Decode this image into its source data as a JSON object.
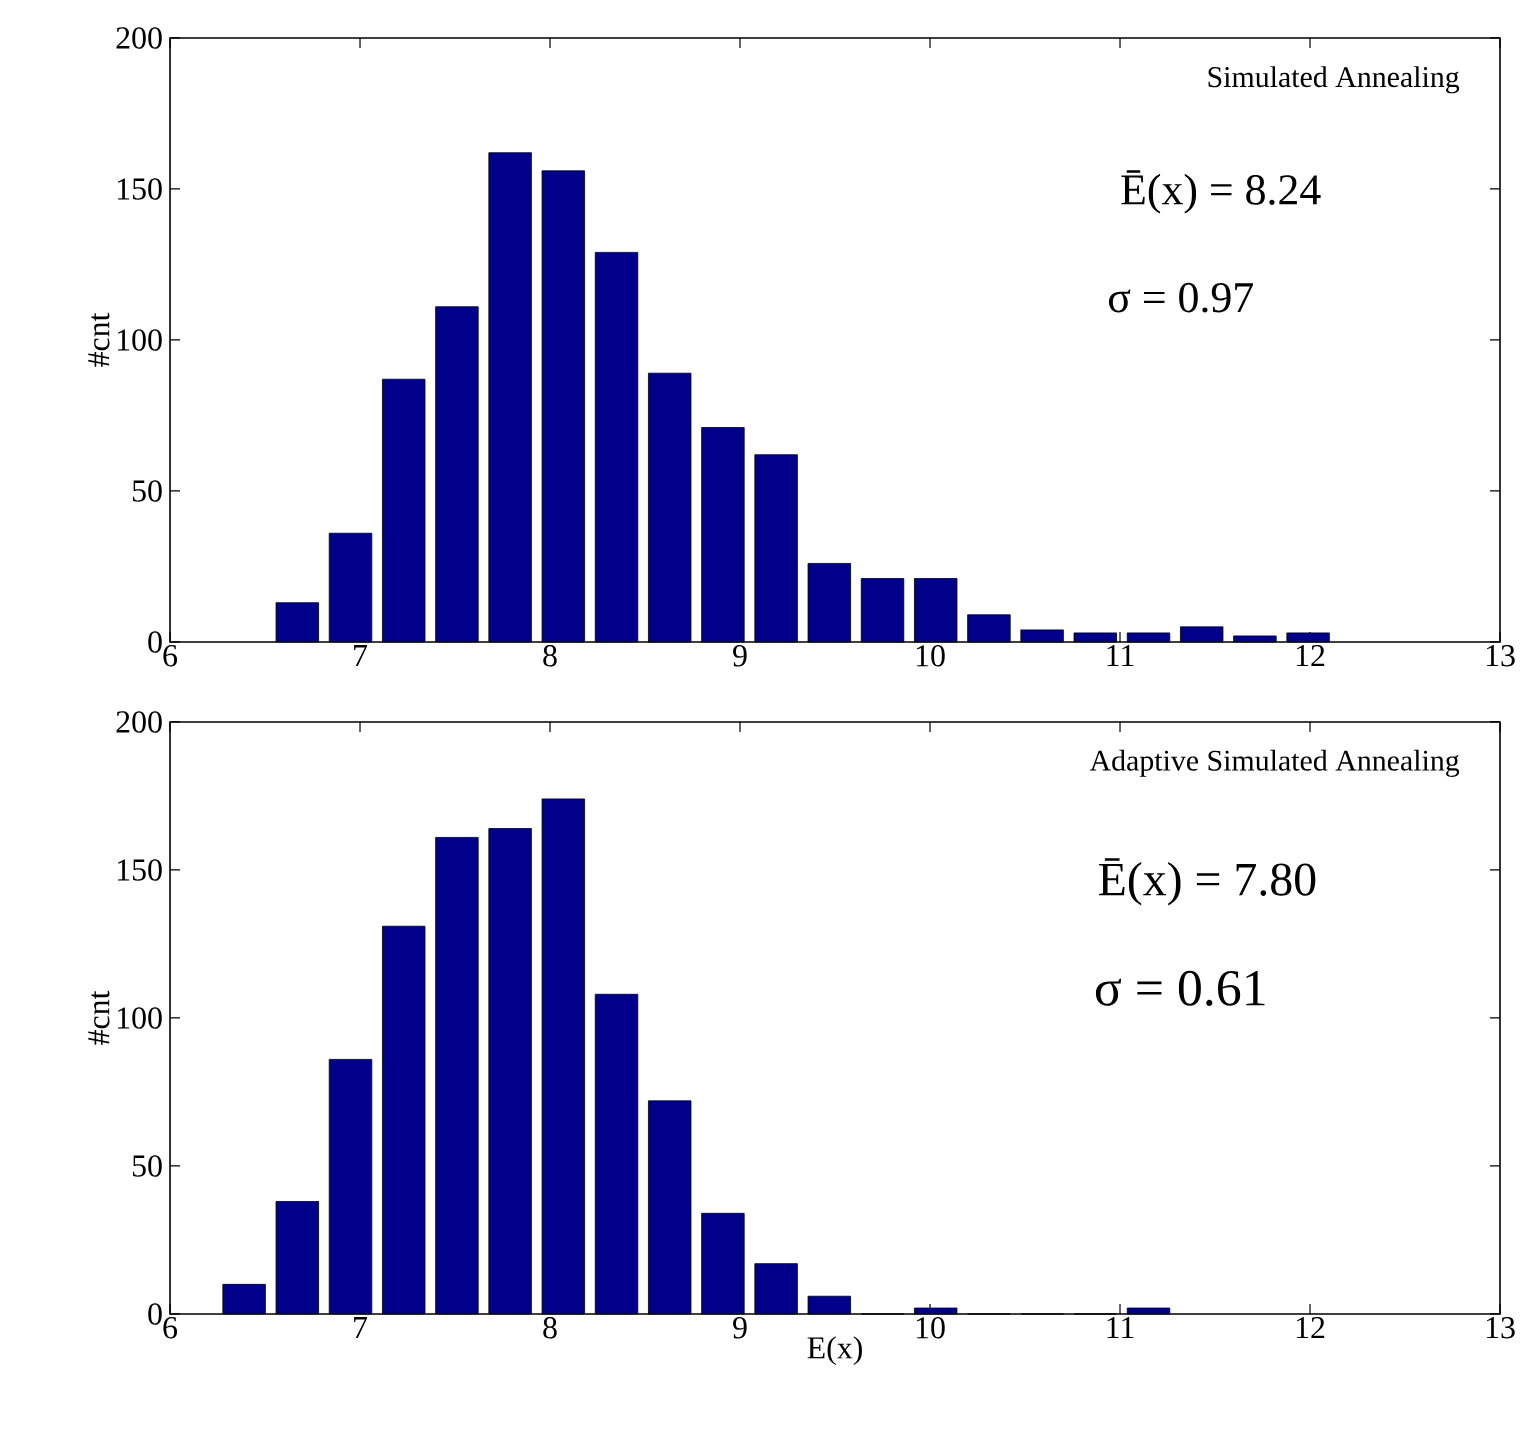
{
  "chart_data": [
    {
      "type": "histogram",
      "title": "Simulated Annealing",
      "ylabel": "#cnt",
      "color": "#00008b",
      "annotations": [
        "Ē(x) = 8.24",
        "σ = 0.97"
      ],
      "bins": [
        6.53,
        6.81,
        7.09,
        7.37,
        7.65,
        7.93,
        8.21,
        8.49,
        8.77,
        9.05,
        9.33,
        9.61,
        9.89,
        10.17,
        10.45,
        10.73,
        11.01,
        11.29,
        11.57,
        11.85,
        12.13
      ],
      "values": [
        13,
        36,
        87,
        111,
        162,
        156,
        129,
        89,
        71,
        62,
        26,
        21,
        21,
        9,
        4,
        3,
        3,
        5,
        2,
        3
      ],
      "xlim": [
        6,
        13
      ],
      "ylim": [
        0,
        200
      ],
      "xticks": [
        6,
        7,
        8,
        9,
        10,
        11,
        12,
        13
      ],
      "yticks": [
        0,
        50,
        100,
        150,
        200
      ]
    },
    {
      "type": "histogram",
      "title": "Adaptive Simulated Annealing",
      "ylabel": "#cnt",
      "xlabel": "E(x)",
      "color": "#00008b",
      "annotations": [
        "Ē(x) = 7.80",
        "σ = 0.61"
      ],
      "bins": [
        6.25,
        6.53,
        6.81,
        7.09,
        7.37,
        7.65,
        7.93,
        8.21,
        8.49,
        8.77,
        9.05,
        9.33,
        9.61,
        9.89,
        10.17,
        10.45,
        10.73,
        11.01,
        11.29
      ],
      "values": [
        10,
        38,
        86,
        131,
        161,
        164,
        174,
        108,
        72,
        34,
        17,
        6,
        0,
        2,
        0,
        0,
        0,
        2
      ],
      "xlim": [
        6,
        13
      ],
      "ylim": [
        0,
        200
      ],
      "xticks": [
        6,
        7,
        8,
        9,
        10,
        11,
        12,
        13
      ],
      "yticks": [
        0,
        50,
        100,
        150,
        200
      ]
    }
  ]
}
